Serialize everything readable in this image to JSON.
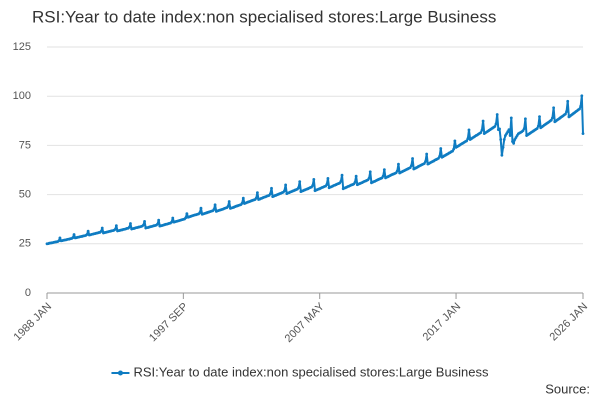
{
  "chart_data": {
    "type": "line",
    "title": "RSI:Year to date index:non specialised stores:Large Business",
    "source": "Source:",
    "categories": [
      "1988 JAN",
      null,
      null,
      null,
      null,
      null,
      null,
      null,
      null,
      null,
      null,
      null,
      null,
      null,
      null,
      null,
      null,
      null,
      null,
      null,
      null,
      null,
      null,
      null,
      null,
      null,
      null,
      null,
      null,
      null,
      null,
      null,
      null,
      null,
      null,
      null,
      null,
      null,
      null,
      null,
      null,
      null,
      null,
      null,
      null,
      null,
      null,
      null,
      null,
      null,
      null,
      null,
      null,
      null,
      null,
      null,
      null,
      null,
      null,
      null,
      null,
      null,
      null,
      null,
      null,
      null,
      null,
      null,
      null,
      null,
      null,
      null,
      null,
      null,
      null,
      null,
      null,
      null,
      null,
      null,
      null,
      null,
      null,
      null,
      null,
      null,
      null,
      null,
      null,
      null,
      null,
      null,
      null,
      null,
      null,
      null,
      null,
      null,
      null,
      null,
      null,
      null,
      null,
      null,
      null,
      null,
      null,
      null,
      null,
      null,
      null,
      null,
      null,
      null,
      null,
      null,
      "1997 SEP",
      null,
      null,
      null,
      null,
      null,
      null,
      null,
      null,
      null,
      null,
      null,
      null,
      null,
      null,
      null,
      null,
      null,
      null,
      null,
      null,
      null,
      null,
      null,
      null,
      null,
      null,
      null,
      null,
      null,
      null,
      null,
      null,
      null,
      null,
      null,
      null,
      null,
      null,
      null,
      null,
      null,
      null,
      null,
      null,
      null,
      null,
      null,
      null,
      null,
      null,
      null,
      null,
      null,
      null,
      null,
      null,
      null,
      null,
      null,
      null,
      null,
      null,
      null,
      null,
      null,
      null,
      null,
      null,
      null,
      null,
      null,
      null,
      null,
      null,
      null,
      null,
      null,
      null,
      null,
      null,
      null,
      null,
      null,
      null,
      null,
      null,
      null,
      null,
      null,
      null,
      null,
      null,
      null,
      null,
      null,
      null,
      null,
      null,
      null,
      null,
      null,
      null,
      null,
      null,
      null,
      null,
      null,
      null,
      null,
      null,
      null,
      null,
      null,
      null,
      null,
      "2007 MAY",
      null,
      null,
      null,
      null,
      null,
      null,
      null,
      null,
      null,
      null,
      null,
      null,
      null,
      null,
      null,
      null,
      null,
      null,
      null,
      null,
      null,
      null,
      null,
      null,
      null,
      null,
      null,
      null,
      null,
      null,
      null,
      null,
      null,
      null,
      null,
      null,
      null,
      null,
      null,
      null,
      null,
      null,
      null,
      null,
      null,
      null,
      null,
      null,
      null,
      null,
      null,
      null,
      null,
      null,
      null,
      null,
      null,
      null,
      null,
      null,
      null,
      null,
      null,
      null,
      null,
      null,
      null,
      null,
      null,
      null,
      null,
      null,
      null,
      null,
      null,
      null,
      null,
      null,
      null,
      null,
      null,
      null,
      null,
      null,
      null,
      null,
      null,
      null,
      null,
      null,
      null,
      null,
      null,
      null,
      null,
      null,
      null,
      null,
      null,
      null,
      null,
      null,
      null,
      null,
      null,
      null,
      null,
      null,
      null,
      null,
      null,
      null,
      null,
      null,
      null,
      "2017 JAN",
      null,
      null,
      null,
      null,
      null,
      null,
      null,
      null,
      null,
      null,
      null,
      null,
      null,
      null,
      null,
      null,
      null,
      null,
      null,
      null,
      null,
      null,
      null,
      null,
      null,
      null,
      null,
      null,
      null,
      null,
      null,
      null,
      null,
      null,
      null,
      null,
      null,
      null,
      null,
      null,
      null,
      null,
      null,
      null,
      null,
      null,
      null,
      null,
      null,
      null,
      null,
      null,
      null,
      null,
      null,
      null,
      null,
      null,
      null,
      null,
      null,
      null,
      null,
      null,
      null,
      null,
      null,
      null,
      null,
      null,
      null,
      null,
      null,
      null,
      null,
      null,
      null,
      null,
      null,
      null,
      null,
      null,
      null,
      null,
      null,
      null,
      null,
      null,
      null,
      null,
      null,
      null,
      null,
      null,
      null,
      null,
      null,
      null,
      null,
      null,
      null,
      null,
      null,
      null,
      null,
      null,
      null,
      "2026 JAN"
    ],
    "series": [
      {
        "name": "RSI:Year to date index:non specialised stores:Large Business",
        "color": "#0f7cc2",
        "values": [
          25,
          25.1,
          25.3,
          25.4,
          25.5,
          25.6,
          25.8,
          25.9,
          26,
          26.1,
          26.5,
          28,
          26.5,
          26.6,
          26.8,
          26.9,
          27,
          27.2,
          27.3,
          27.4,
          27.6,
          27.7,
          28.1,
          29.7,
          28,
          28.1,
          28.3,
          28.4,
          28.6,
          28.7,
          28.8,
          29,
          29.1,
          29.3,
          29.7,
          31.4,
          29.5,
          29.6,
          29.8,
          29.9,
          30.1,
          30.2,
          30.4,
          30.5,
          30.7,
          30.8,
          31.3,
          33,
          30.5,
          30.7,
          30.8,
          31,
          31.1,
          31.3,
          31.4,
          31.6,
          31.7,
          31.9,
          32.3,
          34.2,
          31.5,
          31.7,
          31.8,
          32,
          32.1,
          32.3,
          32.4,
          32.6,
          32.8,
          32.9,
          33.4,
          35.3,
          32.5,
          32.7,
          32.8,
          33,
          33.2,
          33.3,
          33.5,
          33.6,
          33.8,
          34,
          34.5,
          36.4,
          33,
          33.2,
          33.3,
          33.5,
          33.7,
          33.8,
          34,
          34.2,
          34.3,
          34.5,
          35,
          37,
          34,
          34.2,
          34.3,
          34.5,
          34.7,
          34.9,
          35,
          35.2,
          35.4,
          35.5,
          36,
          38.1,
          36,
          36.2,
          36.4,
          36.5,
          36.7,
          36.9,
          37.1,
          37.3,
          37.4,
          37.6,
          38.2,
          40.3,
          38.5,
          38.7,
          38.9,
          39.1,
          39.3,
          39.5,
          39.7,
          39.8,
          40,
          40.2,
          40.8,
          43.1,
          40,
          40.2,
          40.4,
          40.6,
          40.8,
          41,
          41.2,
          41.4,
          41.6,
          41.8,
          42.4,
          44.8,
          41.5,
          41.7,
          41.9,
          42.1,
          42.3,
          42.5,
          42.7,
          43,
          43.2,
          43.4,
          44,
          46.5,
          43,
          43.2,
          43.4,
          43.6,
          43.9,
          44.1,
          44.3,
          44.5,
          44.7,
          44.9,
          45.6,
          48.2,
          45.5,
          45.7,
          46,
          46.2,
          46.4,
          46.6,
          46.9,
          47.1,
          47.3,
          47.5,
          48.2,
          51,
          47.5,
          47.7,
          48,
          48.2,
          48.5,
          48.7,
          48.9,
          49.2,
          49.4,
          49.6,
          50.4,
          53.2,
          49,
          49.2,
          49.5,
          49.7,
          50,
          50.2,
          50.5,
          50.7,
          51,
          51.2,
          51.9,
          54.9,
          50.5,
          50.8,
          51,
          51.3,
          51.5,
          51.8,
          52,
          52.3,
          52.5,
          52.8,
          53.5,
          56.6,
          51.5,
          51.8,
          52,
          52.3,
          52.5,
          52.8,
          53,
          53.3,
          53.6,
          53.8,
          54.6,
          57.7,
          52,
          52.3,
          52.5,
          52.8,
          53,
          53.3,
          53.6,
          53.8,
          54.1,
          54.3,
          55.1,
          58.2,
          53.5,
          53.8,
          54,
          54.3,
          54.6,
          54.8,
          55.1,
          55.4,
          55.6,
          55.9,
          56.7,
          59.9,
          53,
          53.3,
          53.5,
          53.8,
          54.1,
          54.3,
          54.6,
          54.9,
          55.1,
          55.4,
          56.2,
          59.4,
          55,
          55.3,
          55.6,
          55.8,
          56.1,
          56.4,
          56.7,
          56.9,
          57.2,
          57.5,
          58.3,
          61.6,
          56,
          56.3,
          56.6,
          56.8,
          57.1,
          57.4,
          57.7,
          58,
          58.2,
          58.5,
          59.4,
          62.7,
          58.5,
          58.8,
          59.1,
          59.4,
          59.7,
          60,
          60.3,
          60.5,
          60.8,
          61.1,
          62,
          65.5,
          61,
          61.3,
          61.6,
          61.9,
          62.2,
          62.5,
          62.8,
          63.1,
          63.4,
          63.7,
          64.7,
          68.3,
          63,
          63.3,
          63.6,
          63.9,
          64.3,
          64.6,
          64.9,
          65.2,
          65.5,
          65.8,
          66.8,
          70.6,
          65.5,
          65.8,
          66.2,
          66.5,
          66.8,
          67.1,
          67.5,
          67.8,
          68.1,
          68.4,
          69.4,
          73.4,
          69,
          69.3,
          69.7,
          70,
          70.4,
          70.7,
          71.1,
          71.4,
          71.8,
          72.1,
          73.1,
          77.3,
          74,
          74.4,
          74.7,
          75.1,
          75.5,
          75.9,
          76.2,
          76.6,
          77,
          77.3,
          78.4,
          82.9,
          78,
          78.4,
          78.8,
          79.2,
          79.6,
          80,
          80.3,
          80.7,
          81.1,
          81.5,
          82.7,
          87.4,
          81,
          81.4,
          81.8,
          82.2,
          82.6,
          83,
          83.4,
          83.8,
          84.2,
          84.6,
          85.9,
          90.7,
          83,
          83.4,
          78,
          70,
          74,
          78,
          80,
          81,
          82,
          83,
          80,
          89,
          77,
          76,
          78,
          79,
          80,
          80.9,
          81.3,
          81.6,
          82,
          82.5,
          83.5,
          88.5,
          80,
          80.4,
          80.8,
          81.2,
          81.6,
          82,
          82.4,
          82.8,
          83.2,
          83.6,
          84.8,
          89.6,
          84,
          84.4,
          84.8,
          85.3,
          85.7,
          86.1,
          86.5,
          86.9,
          87.4,
          87.8,
          89,
          94.1,
          87,
          87.4,
          87.9,
          88.3,
          88.7,
          89.2,
          89.6,
          90,
          90.5,
          90.9,
          92.2,
          97.4,
          89.5,
          89.9,
          90.4,
          90.8,
          91.3,
          91.7,
          92.2,
          92.6,
          93.1,
          93.5,
          94.9,
          100.2,
          81
        ]
      }
    ],
    "ylim": [
      0,
      125
    ],
    "yticks": [
      0,
      25,
      50,
      75,
      100,
      125
    ],
    "grid": true,
    "legend": "bottom"
  }
}
